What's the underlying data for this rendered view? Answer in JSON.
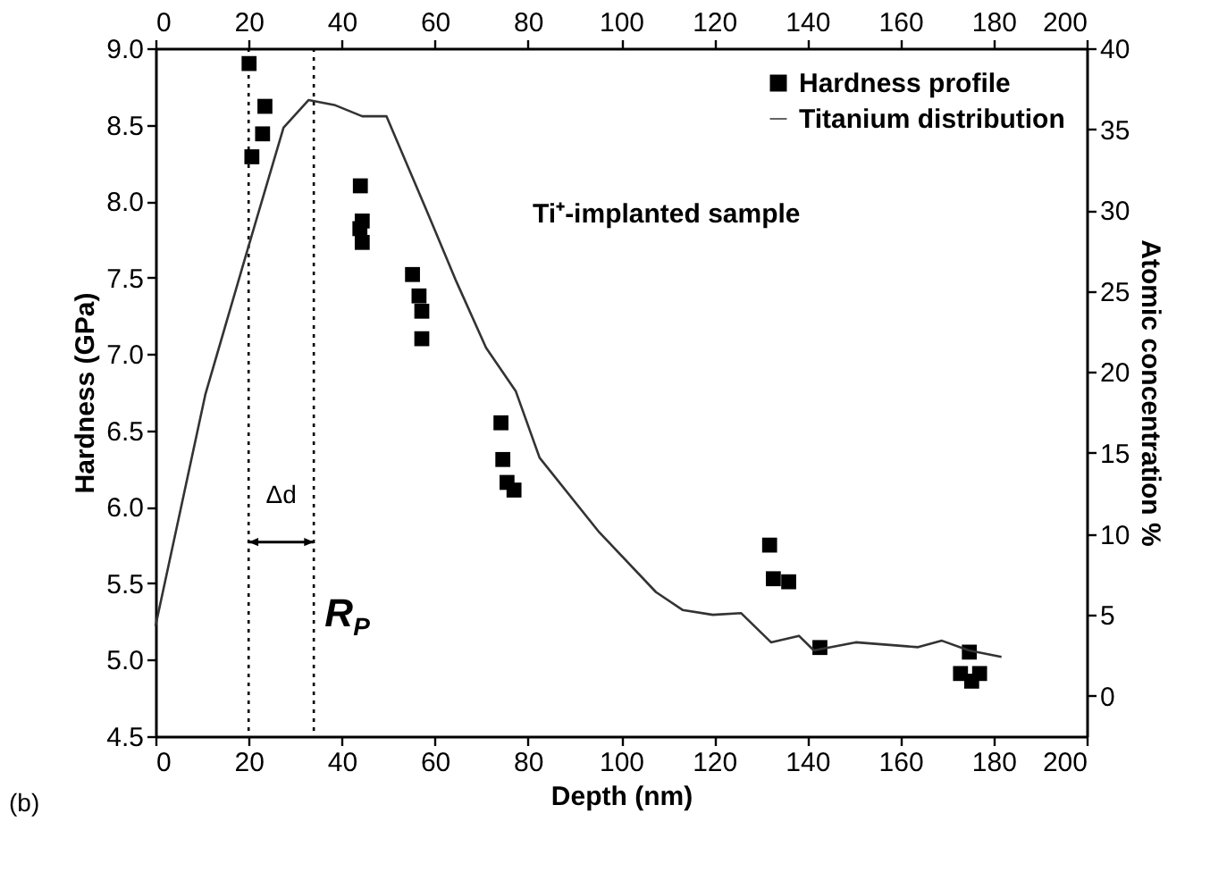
{
  "chart_data": {
    "type": "scatter",
    "xlabel": "Depth (nm)",
    "ylabel": "Hardness (GPa)",
    "y2label": "Atomic concentration %",
    "xlim": [
      0,
      200
    ],
    "xticks": [
      0,
      20,
      40,
      60,
      80,
      100,
      120,
      140,
      160,
      180,
      200
    ],
    "x2lim": [
      0,
      200
    ],
    "x2ticks": [
      0,
      20,
      40,
      60,
      80,
      100,
      120,
      140,
      160,
      180,
      200
    ],
    "ylim": [
      4.5,
      9.0
    ],
    "yticks": [
      4.5,
      {
        "value": 5,
        "label": "5.0"
      },
      5.5,
      {
        "value": 6,
        "label": "6.0"
      },
      6.5,
      {
        "value": 7,
        "label": "7.0"
      },
      7.5,
      {
        "value": 8,
        "label": "8.0"
      },
      8.5,
      {
        "value": 9,
        "label": "9.0"
      }
    ],
    "y2lim": [
      -2.5,
      40
    ],
    "y2ticks": [
      0,
      5,
      10,
      15,
      20,
      25,
      30,
      35,
      40
    ],
    "grid": false,
    "legend": "top right",
    "series": [
      {
        "name": "Hardness profile",
        "marker": "square",
        "color": "#000000",
        "x": [
          20.1,
          23.5,
          23,
          20.7,
          44,
          44.4,
          43.9,
          44.4,
          55.2,
          56.6,
          57.2,
          57.2,
          74.2,
          74.6,
          75.5,
          77,
          131.9,
          132.7,
          136,
          142.7,
          174.8,
          172.9,
          175.3,
          177
        ],
        "values": [
          8.9,
          8.62,
          8.44,
          8.29,
          8.1,
          7.87,
          7.82,
          7.73,
          7.52,
          7.38,
          7.28,
          7.1,
          6.55,
          6.31,
          6.16,
          6.11,
          5.75,
          5.53,
          5.51,
          5.08,
          5.05,
          4.91,
          4.86,
          4.91
        ]
      },
      {
        "name": "Titanium distribution",
        "type": "line",
        "axis": "y2",
        "line_style": "solid",
        "color": "#333333",
        "x": [
          0,
          10.7,
          19.2,
          27.5,
          32.9,
          38.4,
          44.4,
          49.6,
          58.2,
          64.6,
          71,
          77.4,
          82.5,
          95.3,
          107.5,
          113.2,
          119.7,
          125.8,
          132.2,
          138.2,
          141.4,
          150.4,
          163.8,
          168.9,
          174.7,
          181.7
        ],
        "values": [
          4.3,
          18.6,
          27,
          35.1,
          36.8,
          36.5,
          35.8,
          35.8,
          30,
          25.6,
          21.5,
          18.8,
          14.7,
          10.1,
          6.4,
          5.3,
          5.0,
          5.1,
          3.3,
          3.7,
          2.8,
          3.3,
          3.0,
          3.4,
          2.8,
          2.4
        ]
      }
    ],
    "ref_lines": [
      {
        "axis": "x",
        "value": 20,
        "line_style": "dotted",
        "color": "#000000"
      },
      {
        "axis": "x",
        "value": 34,
        "line_style": "dotted",
        "color": "#000000"
      }
    ],
    "annotations": [
      "Δd",
      {
        "text": "R$_{P}$",
        "x": 34,
        "y": 5.77
      },
      "Ti⁺-implanted sample",
      "(b)"
    ]
  }
}
